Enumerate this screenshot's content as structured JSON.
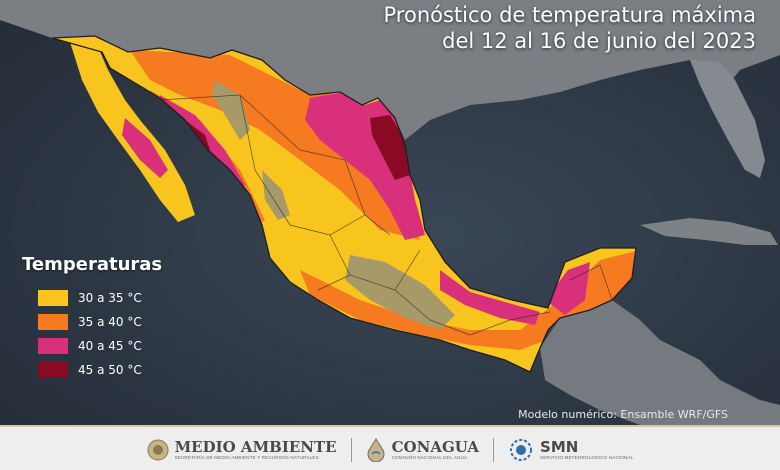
{
  "title": {
    "line1": "Pronóstico de temperatura máxima",
    "line2": "del 12 al 16 de junio del 2023"
  },
  "legend": {
    "heading": "Temperaturas",
    "items": [
      {
        "label": "30 a 35 °C",
        "color": "#f7c51d"
      },
      {
        "label": "35 a 40 °C",
        "color": "#f57a20"
      },
      {
        "label": "40 a 45 °C",
        "color": "#d8307a"
      },
      {
        "label": "45 a 50 °C",
        "color": "#8a0a25"
      }
    ]
  },
  "model_note": "Modelo numérico: Ensamble WRF/GFS",
  "footer": {
    "org1": {
      "name": "MEDIO AMBIENTE",
      "sub": "SECRETARÍA DE MEDIO AMBIENTE Y RECURSOS NATURALES"
    },
    "org2": {
      "name": "CONAGUA",
      "sub": "COMISIÓN NACIONAL DEL AGUA"
    },
    "org3": {
      "name": "SMN",
      "sub": "SERVICIO METEOROLÓGICO NACIONAL"
    }
  },
  "colors": {
    "ocean": "#2d3947",
    "land_neighbor": "#7b7f84",
    "low_elevation": "#a89a68",
    "band_30_35": "#f7c51d",
    "band_35_40": "#f57a20",
    "band_40_45": "#d8307a",
    "band_45_50": "#8a0a25"
  },
  "icons": [
    "government-seal-icon",
    "water-drop-icon",
    "smn-sun-icon"
  ]
}
